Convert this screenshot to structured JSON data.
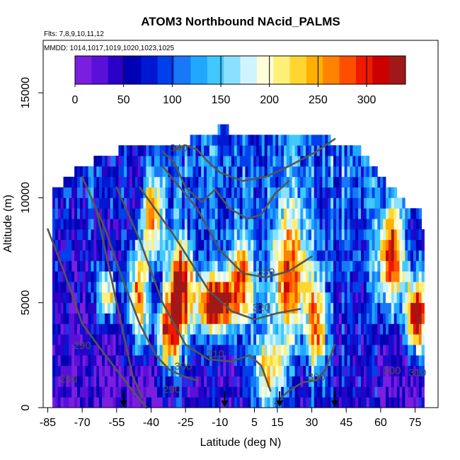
{
  "chart_data": {
    "type": "heatmap",
    "title": "ATOM3 Northbound NAcid_PALMS",
    "flights_note": "Flts: 7,8,9,10,11,12",
    "dates_note": "MMDD: 1014,1017,1019,1020,1023,1025",
    "xlabel": "Latitude (deg N)",
    "ylabel": "Altitude (m)",
    "xlim": [
      -87,
      85
    ],
    "ylim": [
      0,
      17500
    ],
    "x_ticks": [
      -85,
      -70,
      -55,
      -40,
      -25,
      -10,
      5,
      15,
      30,
      45,
      60,
      75
    ],
    "y_ticks": [
      0,
      5000,
      10000,
      15000
    ],
    "colorbar": {
      "min": 0,
      "max": 340,
      "ticks": [
        0,
        50,
        100,
        150,
        200,
        250,
        300
      ],
      "colors": [
        "#7a1ee0",
        "#5a10d8",
        "#2a00c8",
        "#0000b4",
        "#0018d2",
        "#0040ec",
        "#1878f8",
        "#20a8ff",
        "#40c8ff",
        "#8ae0ff",
        "#d0f4ff",
        "#ffffd8",
        "#fff07a",
        "#ffd630",
        "#ffb000",
        "#ff8200",
        "#ff4e00",
        "#ee1a00",
        "#cc0000",
        "#a01818"
      ]
    },
    "coverage_profile": {
      "lat": [
        -83,
        -82,
        -79,
        -74,
        -66,
        -59,
        -55,
        -52,
        -46,
        -40,
        -33,
        -28,
        -24,
        -16,
        -12,
        -9,
        -7,
        -4,
        8,
        14,
        22,
        28,
        38,
        47,
        55,
        62,
        66,
        70,
        77,
        78
      ],
      "top_alt": [
        10500,
        10500,
        10500,
        11000,
        11500,
        12000,
        12000,
        12500,
        12500,
        12500,
        12500,
        12500,
        12500,
        13000,
        13000,
        13500,
        13000,
        13000,
        13000,
        13000,
        13000,
        13000,
        12500,
        12500,
        11500,
        10500,
        10000,
        9500,
        9000,
        8000
      ]
    },
    "hotspots": [
      {
        "lat": -12,
        "alt": 4700,
        "value": 300,
        "sigma": [
          6,
          900
        ]
      },
      {
        "lat": -28,
        "alt": 5500,
        "value": 265,
        "sigma": [
          4,
          1400
        ]
      },
      {
        "lat": -33,
        "alt": 3200,
        "value": 220,
        "sigma": [
          4,
          1200
        ]
      },
      {
        "lat": 75,
        "alt": 4200,
        "value": 320,
        "sigma": [
          3,
          1200
        ]
      },
      {
        "lat": 64,
        "alt": 7000,
        "value": 250,
        "sigma": [
          4,
          1800
        ]
      },
      {
        "lat": 20,
        "alt": 6000,
        "value": 200,
        "sigma": [
          6,
          2200
        ]
      },
      {
        "lat": 10,
        "alt": 1500,
        "value": 175,
        "sigma": [
          5,
          1500
        ]
      },
      {
        "lat": -46,
        "alt": 5000,
        "value": 245,
        "sigma": [
          3,
          1800
        ]
      },
      {
        "lat": -40,
        "alt": 9000,
        "value": 210,
        "sigma": [
          3,
          1500
        ]
      },
      {
        "lat": -1,
        "alt": 6000,
        "value": 200,
        "sigma": [
          4,
          1500
        ]
      },
      {
        "lat": 32,
        "alt": 3500,
        "value": 210,
        "sigma": [
          3,
          1600
        ]
      },
      {
        "lat": -60,
        "alt": 5200,
        "value": 195,
        "sigma": [
          3,
          800
        ]
      }
    ],
    "contours": [
      {
        "level": 290,
        "lat": [
          -85,
          -78,
          -70,
          -62,
          -55,
          -48,
          -42
        ],
        "alt": [
          8500,
          6500,
          4000,
          2800,
          1800,
          800,
          0
        ]
      },
      {
        "level": 290,
        "lat": [
          -64,
          -58,
          -52,
          -48,
          -44
        ],
        "alt": [
          9500,
          6500,
          3500,
          1500,
          500
        ]
      },
      {
        "level": 300,
        "lat": [
          -70,
          -60,
          -52,
          -45,
          -38,
          -32,
          -26,
          -20
        ],
        "alt": [
          11000,
          8500,
          6000,
          4000,
          2500,
          1800,
          1500,
          1300
        ]
      },
      {
        "level": 300,
        "lat": [
          14,
          20,
          26,
          32,
          36,
          40
        ],
        "alt": [
          200,
          800,
          1200,
          1300,
          1800,
          3000
        ]
      },
      {
        "level": 310,
        "lat": [
          -55,
          -45,
          -35,
          -25,
          -15,
          -5,
          3,
          8,
          12
        ],
        "alt": [
          10500,
          8000,
          5000,
          3000,
          2300,
          2200,
          2500,
          2000,
          800
        ]
      },
      {
        "level": 320,
        "lat": [
          -45,
          -30,
          -15,
          -5,
          5,
          15,
          25
        ],
        "alt": [
          10500,
          8200,
          5600,
          4600,
          4200,
          4500,
          4700
        ]
      },
      {
        "level": 330,
        "lat": [
          -35,
          -20,
          -10,
          0,
          10,
          20,
          30
        ],
        "alt": [
          11500,
          9500,
          7500,
          6400,
          6200,
          6500,
          7200
        ]
      },
      {
        "level": 340,
        "lat": [
          -35,
          -30,
          -25,
          -18,
          -12,
          -6,
          2,
          8,
          14,
          20
        ],
        "alt": [
          12200,
          11700,
          10500,
          9800,
          10400,
          9500,
          9000,
          9200,
          10200,
          10800
        ]
      },
      {
        "level": 340,
        "lat": [
          -30,
          -25,
          -20,
          -16,
          -10,
          0,
          10,
          20,
          32,
          40
        ],
        "alt": [
          12300,
          12500,
          12300,
          11800,
          11200,
          10800,
          11000,
          11500,
          12200,
          12800
        ]
      }
    ],
    "contour_labels": [
      {
        "text": "340",
        "lat": -28,
        "alt": 12200
      },
      {
        "text": "330",
        "lat": 10,
        "alt": 6300
      },
      {
        "text": "320",
        "lat": 8,
        "alt": 4600
      },
      {
        "text": "310",
        "lat": -12,
        "alt": 2400
      },
      {
        "text": "300",
        "lat": -26,
        "alt": 1800
      },
      {
        "text": "300",
        "lat": 32,
        "alt": 1300
      },
      {
        "text": "290",
        "lat": -70,
        "alt": 2800
      },
      {
        "text": "290",
        "lat": -76,
        "alt": 1200
      },
      {
        "text": "290",
        "lat": -31,
        "alt": 700
      },
      {
        "text": "300",
        "lat": 65,
        "alt": 1600
      },
      {
        "text": "310",
        "lat": 76,
        "alt": 1500
      }
    ],
    "flight_markers_lat": [
      -52,
      -8,
      16,
      40
    ]
  }
}
